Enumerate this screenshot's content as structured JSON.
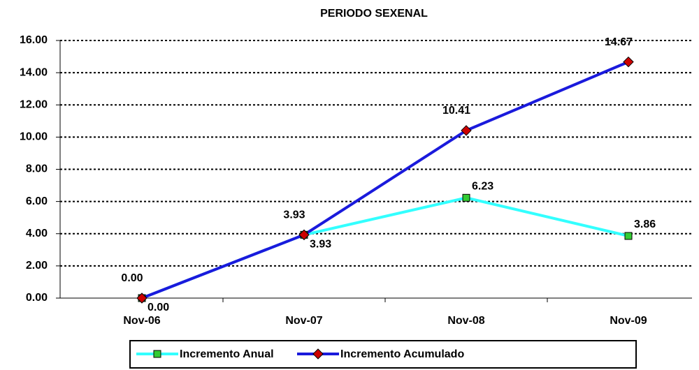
{
  "chart_data": {
    "type": "line",
    "title": "PERIODO SEXENAL",
    "categories": [
      "Nov-06",
      "Nov-07",
      "Nov-08",
      "Nov-09"
    ],
    "series": [
      {
        "name": "Incremento Anual",
        "color": "#33ffff",
        "marker_color": "#33cc33",
        "marker": "square",
        "label_color": "#000000",
        "values": [
          0,
          3.93,
          6.23,
          3.86
        ],
        "value_labels": [
          "0.00",
          "3.93",
          "6.23",
          "3.86"
        ]
      },
      {
        "name": "Incremento Acumulado",
        "color": "#1a1adc",
        "marker_color": "#cc0000",
        "marker": "diamond",
        "label_color": "#3333ee",
        "values": [
          0,
          3.93,
          10.41,
          14.67
        ],
        "value_labels": [
          "0.00",
          "3.93",
          "10.41",
          "14.67"
        ]
      }
    ],
    "ylim": [
      0,
      16
    ],
    "yticks": [
      {
        "value": 0,
        "label": "0.00"
      },
      {
        "value": 2,
        "label": "2.00"
      },
      {
        "value": 4,
        "label": "4.00"
      },
      {
        "value": 6,
        "label": "6.00"
      },
      {
        "value": 8,
        "label": "8.00"
      },
      {
        "value": 10,
        "label": "10.00"
      },
      {
        "value": 12,
        "label": "12.00"
      },
      {
        "value": 14,
        "label": "14.00"
      },
      {
        "value": 16,
        "label": "16.00"
      }
    ],
    "grid": true,
    "legend": "bottom"
  }
}
